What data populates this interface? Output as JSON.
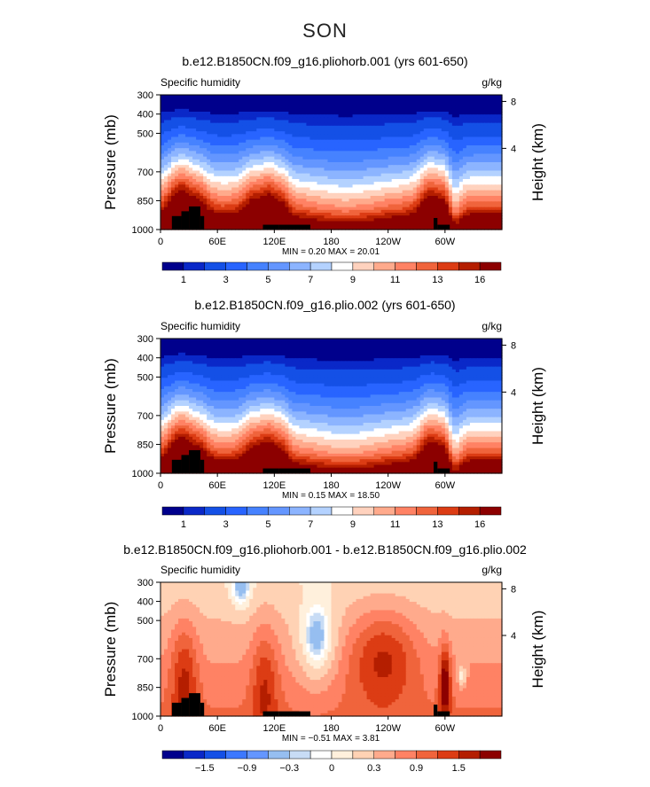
{
  "figure_title": "SON",
  "chart_data": [
    {
      "type": "heatmap",
      "title": "b.e12.B1850CN.f09_g16.pliohorb.001 (yrs 601-650)",
      "variable": "Specific humidity",
      "units": "g/kg",
      "ylabel": "Pressure (mb)",
      "ylabel_right": "Height (km)",
      "x_ticks": [
        "0",
        "60E",
        "120E",
        "180",
        "120W",
        "60W"
      ],
      "y_ticks": [
        "300",
        "400",
        "500",
        "700",
        "850",
        "1000"
      ],
      "y_ticks_right": [
        "8",
        "4"
      ],
      "min": 0.2,
      "max": 20.01,
      "min_max_text": "MIN =     0.20   MAX =   20.01",
      "colorbar_labels": [
        "1",
        "3",
        "5",
        "7",
        "9",
        "11",
        "13",
        "16"
      ],
      "colormap": "blue_red_sequential"
    },
    {
      "type": "heatmap",
      "title": "b.e12.B1850CN.f09_g16.plio.002 (yrs 601-650)",
      "variable": "Specific humidity",
      "units": "g/kg",
      "ylabel": "Pressure (mb)",
      "ylabel_right": "Height (km)",
      "x_ticks": [
        "0",
        "60E",
        "120E",
        "180",
        "120W",
        "60W"
      ],
      "y_ticks": [
        "300",
        "400",
        "500",
        "700",
        "850",
        "1000"
      ],
      "y_ticks_right": [
        "8",
        "4"
      ],
      "min": 0.15,
      "max": 18.5,
      "min_max_text": "MIN =     0.15   MAX =   18.50",
      "colorbar_labels": [
        "1",
        "3",
        "5",
        "7",
        "9",
        "11",
        "13",
        "16"
      ],
      "colormap": "blue_red_sequential"
    },
    {
      "type": "heatmap",
      "title": "b.e12.B1850CN.f09_g16.pliohorb.001 - b.e12.B1850CN.f09_g16.plio.002",
      "variable": "Specific humidity",
      "units": "g/kg",
      "ylabel": "Pressure (mb)",
      "ylabel_right": "Height (km)",
      "x_ticks": [
        "0",
        "60E",
        "120E",
        "180",
        "120W",
        "60W"
      ],
      "y_ticks": [
        "300",
        "400",
        "500",
        "700",
        "850",
        "1000"
      ],
      "y_ticks_right": [
        "8",
        "4"
      ],
      "min": -0.51,
      "max": 3.81,
      "min_max_text": "MIN =    −0.51   MAX =     3.81",
      "colorbar_labels": [
        "−1.5",
        "−0.9",
        "−0.3",
        "0",
        "0.3",
        "0.9",
        "1.5"
      ],
      "colormap": "blue_red_diverging"
    }
  ],
  "colors": {
    "seq": [
      "#00008c",
      "#0a28c8",
      "#1450e6",
      "#2864ff",
      "#4682ff",
      "#6496ff",
      "#8cb4ff",
      "#b4d2ff",
      "#ffffff",
      "#ffd2be",
      "#ffaa8c",
      "#ff8264",
      "#f0643c",
      "#dc3c14",
      "#b41e00",
      "#8c0000"
    ],
    "div": [
      "#00008c",
      "#0a28c8",
      "#1450e6",
      "#3c78ff",
      "#6496ff",
      "#96bef0",
      "#c8dcf5",
      "#ffffff",
      "#fff0dc",
      "#ffd2b4",
      "#ffaa8c",
      "#ff8264",
      "#f0643c",
      "#dc3c14",
      "#b41e00",
      "#8c0000"
    ],
    "topo": "#000000"
  }
}
